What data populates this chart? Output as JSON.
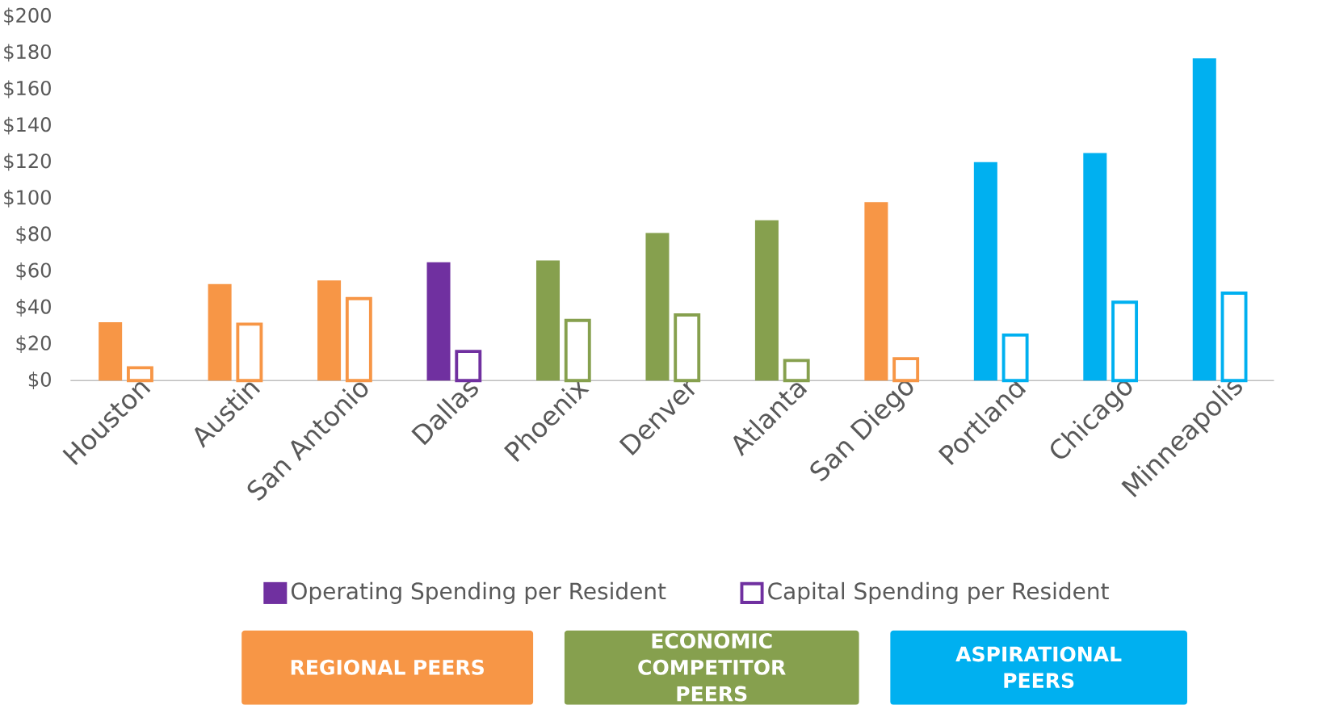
{
  "chart_data": {
    "type": "bar",
    "categories": [
      "Houston",
      "Austin",
      "San Antonio",
      "Dallas",
      "Phoenix",
      "Denver",
      "Atlanta",
      "San Diego",
      "Portland",
      "Chicago",
      "Minneapolis"
    ],
    "series": [
      {
        "name": "Operating Spending per Resident",
        "color": "#7030a0",
        "colors": [
          "#f79646",
          "#f79646",
          "#f79646",
          "#7030a0",
          "#86a04e",
          "#86a04e",
          "#86a04e",
          "#f79646",
          "#00b0f0",
          "#00b0f0",
          "#00b0f0"
        ],
        "values": [
          32,
          53,
          55,
          65,
          66,
          81,
          88,
          98,
          120,
          125,
          177
        ]
      },
      {
        "name": "Capital Spending per Resident",
        "color": "#7030a0",
        "colors": [
          "#f79646",
          "#f79646",
          "#f79646",
          "#7030a0",
          "#86a04e",
          "#86a04e",
          "#86a04e",
          "#f79646",
          "#00b0f0",
          "#00b0f0",
          "#00b0f0"
        ],
        "values": [
          7,
          31,
          45,
          16,
          33,
          36,
          11,
          12,
          25,
          43,
          48
        ]
      }
    ],
    "ylim": [
      0,
      200
    ],
    "yticks": [
      {
        "value": 0,
        "label": "$0"
      },
      {
        "value": 20,
        "label": "$20"
      },
      {
        "value": 40,
        "label": "$40"
      },
      {
        "value": 60,
        "label": "$60"
      },
      {
        "value": 80,
        "label": "$80"
      },
      {
        "value": 100,
        "label": "$100"
      },
      {
        "value": 120,
        "label": "$120"
      },
      {
        "value": 140,
        "label": "$140"
      },
      {
        "value": 160,
        "label": "$160"
      },
      {
        "value": 180,
        "label": "$180"
      },
      {
        "value": 200,
        "label": "$200"
      }
    ],
    "grid": false,
    "legend": "bottom",
    "annotations": [
      "REGIONAL PEERS",
      "ECONOMIC COMPETITOR PEERS",
      "ASPIRATIONAL PEERS"
    ]
  }
}
